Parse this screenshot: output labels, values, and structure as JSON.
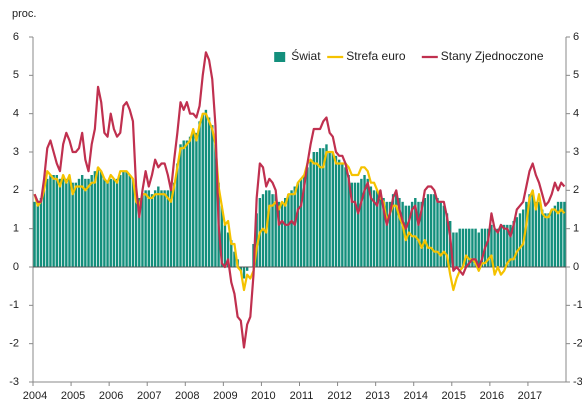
{
  "chart_data": {
    "type": "bar_line",
    "y_label": "proc.",
    "categories": [
      "2004",
      null,
      null,
      null,
      null,
      null,
      null,
      null,
      null,
      null,
      null,
      null,
      "2005",
      null,
      null,
      null,
      null,
      null,
      null,
      null,
      null,
      null,
      null,
      null,
      "2006",
      null,
      null,
      null,
      null,
      null,
      null,
      null,
      null,
      null,
      null,
      null,
      "2007",
      null,
      null,
      null,
      null,
      null,
      null,
      null,
      null,
      null,
      null,
      null,
      "2008",
      null,
      null,
      null,
      null,
      null,
      null,
      null,
      null,
      null,
      null,
      null,
      "2009",
      null,
      null,
      null,
      null,
      null,
      null,
      null,
      null,
      null,
      null,
      null,
      "2010",
      null,
      null,
      null,
      null,
      null,
      null,
      null,
      null,
      null,
      null,
      null,
      "2011",
      null,
      null,
      null,
      null,
      null,
      null,
      null,
      null,
      null,
      null,
      null,
      "2012",
      null,
      null,
      null,
      null,
      null,
      null,
      null,
      null,
      null,
      null,
      null,
      "2013",
      null,
      null,
      null,
      null,
      null,
      null,
      null,
      null,
      null,
      null,
      null,
      "2014",
      null,
      null,
      null,
      null,
      null,
      null,
      null,
      null,
      null,
      null,
      null,
      "2015",
      null,
      null,
      null,
      null,
      null,
      null,
      null,
      null,
      null,
      null,
      null,
      "2016",
      null,
      null,
      null,
      null,
      null,
      null,
      null,
      null,
      null,
      null,
      null,
      "2017",
      null,
      null,
      null,
      null,
      null,
      null,
      null,
      null,
      null,
      null,
      null
    ],
    "series": [
      {
        "name": "Świat",
        "kind": "bar",
        "color": "#138f7c",
        "values": [
          1.7,
          1.7,
          1.8,
          2.0,
          2.3,
          2.4,
          2.4,
          2.4,
          2.3,
          2.4,
          2.3,
          2.3,
          2.2,
          2.2,
          2.3,
          2.4,
          2.3,
          2.3,
          2.4,
          2.5,
          2.6,
          2.5,
          2.3,
          2.2,
          2.3,
          2.3,
          2.3,
          2.4,
          2.5,
          2.5,
          2.4,
          2.3,
          2.0,
          1.8,
          1.9,
          2.0,
          2.0,
          1.9,
          2.0,
          2.1,
          2.0,
          2.0,
          2.0,
          2.0,
          2.2,
          2.7,
          3.2,
          3.3,
          3.3,
          3.4,
          3.5,
          3.5,
          3.8,
          4.0,
          4.1,
          3.9,
          3.7,
          3.2,
          2.2,
          1.6,
          1.1,
          0.9,
          0.7,
          0.4,
          0.2,
          -0.1,
          -0.3,
          -0.1,
          0.0,
          0.6,
          1.4,
          1.8,
          1.9,
          2.0,
          2.0,
          1.9,
          1.9,
          1.7,
          1.7,
          1.8,
          1.9,
          2.0,
          2.1,
          2.2,
          2.3,
          2.4,
          2.6,
          2.8,
          3.0,
          3.0,
          3.1,
          3.1,
          3.2,
          3.0,
          3.0,
          2.9,
          2.8,
          2.7,
          2.6,
          2.4,
          2.2,
          2.2,
          2.2,
          2.3,
          2.4,
          2.3,
          2.1,
          2.0,
          2.0,
          2.0,
          1.8,
          1.7,
          1.7,
          1.9,
          1.9,
          1.8,
          1.7,
          1.6,
          1.6,
          1.7,
          1.8,
          1.7,
          1.7,
          1.8,
          1.9,
          1.9,
          1.9,
          1.8,
          1.7,
          1.6,
          1.4,
          1.2,
          0.9,
          0.9,
          1.0,
          1.0,
          1.0,
          1.0,
          1.0,
          1.0,
          0.9,
          1.0,
          1.0,
          1.0,
          1.1,
          1.0,
          1.0,
          1.1,
          1.1,
          1.1,
          1.1,
          1.2,
          1.3,
          1.4,
          1.5,
          1.7,
          1.9,
          2.0,
          1.7,
          1.7,
          1.5,
          1.4,
          1.4,
          1.5,
          1.6,
          1.7,
          1.7,
          1.7
        ]
      },
      {
        "name": "Strefa euro",
        "kind": "line",
        "color": "#f5c200",
        "values": [
          1.9,
          1.6,
          1.7,
          2.0,
          2.5,
          2.4,
          2.3,
          2.3,
          2.1,
          2.4,
          2.2,
          2.4,
          1.9,
          2.1,
          2.1,
          2.1,
          2.0,
          2.1,
          2.2,
          2.2,
          2.6,
          2.5,
          2.3,
          2.2,
          2.4,
          2.3,
          2.2,
          2.5,
          2.5,
          2.5,
          2.4,
          2.3,
          1.7,
          1.6,
          1.9,
          1.9,
          1.8,
          1.8,
          1.9,
          1.9,
          1.9,
          1.9,
          1.8,
          1.7,
          2.1,
          2.6,
          3.1,
          3.1,
          3.2,
          3.3,
          3.6,
          3.3,
          3.7,
          4.0,
          4.0,
          3.8,
          3.6,
          3.2,
          2.1,
          1.6,
          1.1,
          1.2,
          0.6,
          0.6,
          0.0,
          -0.1,
          -0.6,
          -0.2,
          -0.3,
          -0.1,
          0.5,
          0.9,
          1.0,
          0.9,
          1.6,
          1.6,
          1.7,
          1.5,
          1.7,
          1.6,
          1.9,
          1.9,
          1.9,
          2.2,
          2.3,
          2.4,
          2.7,
          2.8,
          2.7,
          2.7,
          2.6,
          2.6,
          3.0,
          3.0,
          3.0,
          2.7,
          2.7,
          2.7,
          2.7,
          2.6,
          2.4,
          2.4,
          2.4,
          2.6,
          2.6,
          2.5,
          2.2,
          2.2,
          2.0,
          1.8,
          1.7,
          1.2,
          1.4,
          1.6,
          1.6,
          1.3,
          1.1,
          0.7,
          0.9,
          0.8,
          0.8,
          0.7,
          0.5,
          0.7,
          0.5,
          0.5,
          0.4,
          0.4,
          0.3,
          0.4,
          0.3,
          -0.2,
          -0.6,
          -0.3,
          -0.1,
          0.0,
          0.3,
          0.2,
          0.2,
          0.1,
          -0.1,
          0.1,
          0.1,
          0.2,
          0.3,
          -0.2,
          0.0,
          -0.2,
          -0.1,
          0.1,
          0.2,
          0.2,
          0.4,
          0.5,
          0.6,
          1.1,
          1.8,
          2.0,
          1.5,
          1.9,
          1.4,
          1.3,
          1.3,
          1.5,
          1.5,
          1.4,
          1.5,
          1.4
        ]
      },
      {
        "name": "Stany Zjednoczone",
        "kind": "line",
        "color": "#c0304f",
        "values": [
          1.9,
          1.7,
          1.7,
          2.3,
          3.1,
          3.3,
          3.0,
          2.7,
          2.5,
          3.2,
          3.5,
          3.3,
          3.0,
          3.0,
          3.1,
          3.5,
          2.8,
          2.5,
          3.2,
          3.6,
          4.7,
          4.3,
          3.5,
          3.4,
          4.0,
          3.6,
          3.4,
          3.5,
          4.2,
          4.3,
          4.1,
          3.8,
          2.1,
          1.3,
          2.0,
          2.5,
          2.1,
          2.4,
          2.8,
          2.6,
          2.7,
          2.7,
          2.4,
          2.0,
          2.8,
          3.5,
          4.3,
          4.1,
          4.3,
          4.0,
          4.0,
          3.9,
          4.2,
          5.0,
          5.6,
          5.4,
          4.9,
          3.7,
          1.1,
          0.1,
          0.0,
          0.2,
          -0.4,
          -0.7,
          -1.3,
          -1.4,
          -2.1,
          -1.5,
          -1.3,
          -0.2,
          1.8,
          2.7,
          2.6,
          2.1,
          2.3,
          2.2,
          2.0,
          1.1,
          1.2,
          1.1,
          1.1,
          1.2,
          1.1,
          1.5,
          1.6,
          2.1,
          2.7,
          3.2,
          3.6,
          3.6,
          3.6,
          3.8,
          3.9,
          3.5,
          3.4,
          3.0,
          2.9,
          2.9,
          2.7,
          2.3,
          1.7,
          1.7,
          1.4,
          1.7,
          2.0,
          2.2,
          1.8,
          1.7,
          1.6,
          2.0,
          1.5,
          1.1,
          1.4,
          1.8,
          2.0,
          1.5,
          1.2,
          1.0,
          1.2,
          1.5,
          1.6,
          1.1,
          1.5,
          2.0,
          2.1,
          2.1,
          2.0,
          1.7,
          1.7,
          1.7,
          1.3,
          0.8,
          -0.1,
          0.0,
          -0.1,
          -0.2,
          0.0,
          0.1,
          0.2,
          0.2,
          0.0,
          0.2,
          0.5,
          0.7,
          1.4,
          1.0,
          0.9,
          1.1,
          1.0,
          1.0,
          0.8,
          1.1,
          1.5,
          1.6,
          1.7,
          2.1,
          2.5,
          2.7,
          2.4,
          2.2,
          1.9,
          1.6,
          1.7,
          1.9,
          2.2,
          2.0,
          2.2,
          2.1
        ]
      }
    ],
    "ylim": [
      -3,
      6
    ],
    "yticks": [
      -3,
      -2,
      -1,
      0,
      1,
      2,
      3,
      4,
      5,
      6
    ],
    "y2lim": [
      -3,
      6
    ],
    "y2ticks": [
      -3,
      -2,
      -1,
      0,
      1,
      2,
      3,
      4,
      5,
      6
    ],
    "legend": "upper right",
    "grid": false
  }
}
